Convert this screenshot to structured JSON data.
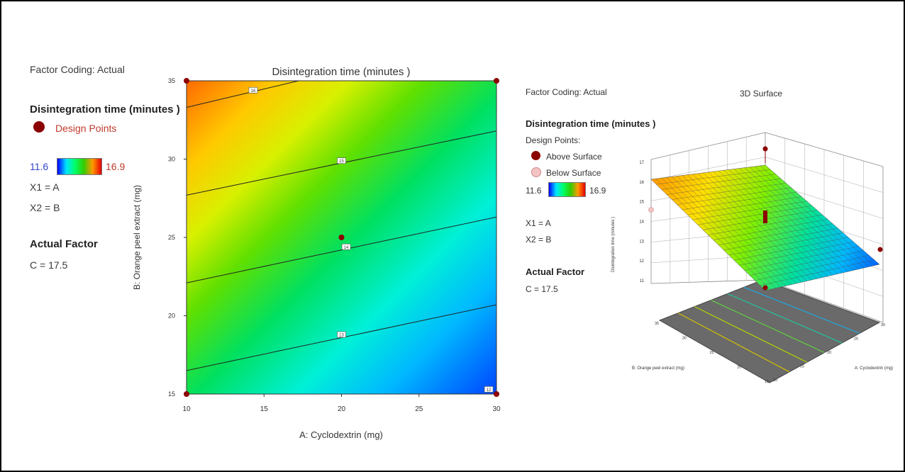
{
  "chart_data": [
    {
      "type": "contour",
      "title": "Disintegration time (minutes )",
      "xlabel": "A: Cyclodextrin (mg)",
      "ylabel": "B: Orange peel extract (mg)",
      "xlim": [
        10,
        30
      ],
      "ylim": [
        15,
        35
      ],
      "x_ticks": [
        "10",
        "15",
        "20",
        "25",
        "30"
      ],
      "y_ticks": [
        "15",
        "20",
        "25",
        "30",
        "35"
      ],
      "contour_lines": [
        {
          "label": "16",
          "from": [
            10,
            33.3
          ],
          "to": [
            30,
            38.0
          ],
          "label_at": [
            14.3,
            34.4
          ]
        },
        {
          "label": "15",
          "from": [
            10,
            27.7
          ],
          "to": [
            30,
            31.8
          ],
          "label_at": [
            20.0,
            29.9
          ]
        },
        {
          "label": "14",
          "from": [
            10,
            22.1
          ],
          "to": [
            30,
            26.3
          ],
          "label_at": [
            20.3,
            24.4
          ]
        },
        {
          "label": "13",
          "from": [
            10,
            16.5
          ],
          "to": [
            30,
            20.7
          ],
          "label_at": [
            20.0,
            18.8
          ]
        },
        {
          "label": "12",
          "label_at": [
            29.5,
            15.3
          ]
        }
      ],
      "design_points": [
        {
          "x": 10,
          "y": 35
        },
        {
          "x": 30,
          "y": 35
        },
        {
          "x": 10,
          "y": 15
        },
        {
          "x": 30,
          "y": 15
        },
        {
          "x": 20,
          "y": 25
        }
      ]
    },
    {
      "type": "surface3d",
      "title": "3D Surface",
      "xlabel": "A: Cyclodextrin (mg)",
      "ylabel": "B: Orange peel extract (mg)",
      "zlabel": "Disintegration time (minutes )",
      "z_ticks": [
        "11",
        "12",
        "13",
        "14",
        "15",
        "16",
        "17"
      ],
      "a_ticks": [
        "10",
        "15",
        "20",
        "25",
        "30"
      ],
      "b_ticks": [
        "15",
        "20",
        "25",
        "30",
        "35"
      ],
      "zlim": [
        11,
        17
      ]
    }
  ],
  "left_panel": {
    "factor_coding": "Factor Coding: Actual",
    "response": "Disintegration time (minutes )",
    "design_points": "Design Points",
    "cbar_min": "11.6",
    "cbar_max": "16.9",
    "x1": "X1 = A",
    "x2": "X2 = B",
    "actual_factor": "Actual Factor",
    "c_value": "C = 17.5"
  },
  "right_panel": {
    "factor_coding": "Factor Coding: Actual",
    "response": "Disintegration time (minutes )",
    "design_points": "Design Points:",
    "above": "Above Surface",
    "below": "Below Surface",
    "cbar_min": "11.6",
    "cbar_max": "16.9",
    "x1": "X1 = A",
    "x2": "X2 = B",
    "actual_factor": "Actual Factor",
    "c_value": "C = 17.5"
  },
  "colors": {
    "design_point": "#8b0000",
    "below_point": "#f4c4c4",
    "accent_red": "#c0392b",
    "accent_blue": "#3344cc"
  }
}
